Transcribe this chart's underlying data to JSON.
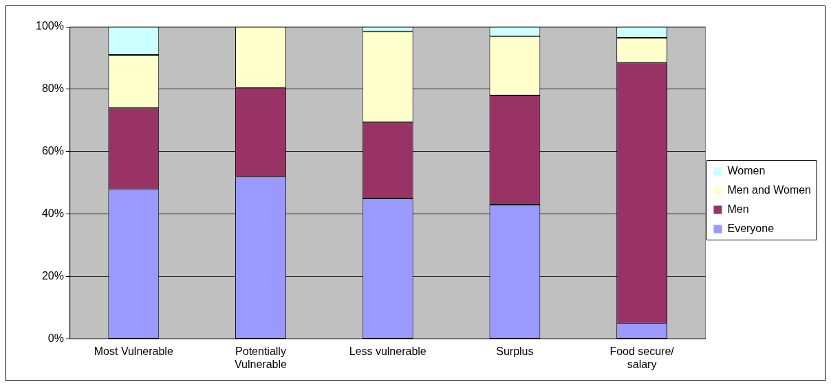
{
  "chart_data": {
    "type": "bar",
    "stacked": true,
    "categories": [
      "Most Vulnerable",
      "Potentially Vulnerable",
      "Less vulnerable",
      "Surplus",
      "Food secure/ salary"
    ],
    "series": [
      {
        "name": "Everyone",
        "color": "#9999ff",
        "values": [
          48,
          52,
          45,
          43,
          5
        ]
      },
      {
        "name": "Men",
        "color": "#993366",
        "values": [
          26,
          28.5,
          24.5,
          35,
          83.5
        ]
      },
      {
        "name": "Men and Women",
        "color": "#ffffcc",
        "values": [
          17,
          19.5,
          29,
          19,
          8
        ]
      },
      {
        "name": "Women",
        "color": "#ccffff",
        "values": [
          9,
          0,
          1.5,
          3,
          3.5
        ]
      }
    ],
    "ylim": [
      0,
      100
    ],
    "yticks": [
      {
        "value": 0,
        "label": "0%"
      },
      {
        "value": 20,
        "label": "20%"
      },
      {
        "value": 40,
        "label": "40%"
      },
      {
        "value": 60,
        "label": "60%"
      },
      {
        "value": 80,
        "label": "80%"
      },
      {
        "value": 100,
        "label": "100%"
      }
    ],
    "grid": "y",
    "legend": "right"
  }
}
